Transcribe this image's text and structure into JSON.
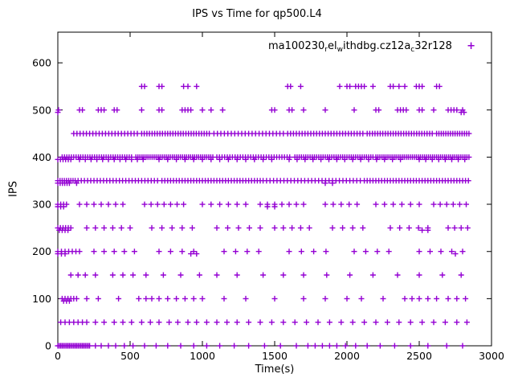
{
  "title": "IPS vs Time for qp500.L4",
  "xlabel": "Time(s)",
  "ylabel": "IPS",
  "legend": {
    "plain_label": "ma100230_rel_withdbg.cz12a_c32r128",
    "parts": [
      {
        "text": "ma100230",
        "sub": false
      },
      {
        "text": "r",
        "sub": true
      },
      {
        "text": "el",
        "sub": false
      },
      {
        "text": "w",
        "sub": true
      },
      {
        "text": "ithdbg.cz12a",
        "sub": false
      },
      {
        "text": "c",
        "sub": true
      },
      {
        "text": "32r128",
        "sub": false
      }
    ],
    "marker": "+"
  },
  "chart_data": {
    "type": "scatter",
    "title": "IPS vs Time for qp500.L4",
    "xlabel": "Time(s)",
    "ylabel": "IPS",
    "xlim": [
      0,
      3000
    ],
    "ylim": [
      0,
      665
    ],
    "xticks": [
      0,
      500,
      1000,
      1500,
      2000,
      2500,
      3000
    ],
    "yticks": [
      0,
      100,
      200,
      300,
      400,
      500,
      600
    ],
    "grid": false,
    "legend_position": "top-right-inside",
    "series_label": "ma100230_rel_withdbg.cz12a_c32r128",
    "marker": "+",
    "color": "#9400D3",
    "note": "x values per IPS band; runs are [start,end,step] expansions plus individual points (values estimated from plot)",
    "bands": [
      {
        "ips": 550,
        "points": [
          580,
          600,
          700,
          720,
          870,
          900,
          960,
          1590,
          1610,
          1680,
          1950,
          2000,
          2020,
          2060,
          2080,
          2100,
          2120,
          2180,
          2300,
          2320,
          2360,
          2400,
          2480,
          2500,
          2520,
          2620,
          2640
        ]
      },
      {
        "ips": 500,
        "points": [
          5,
          150,
          170,
          280,
          300,
          320,
          390,
          410,
          580,
          700,
          720,
          860,
          880,
          900,
          920,
          1000,
          1060,
          1140,
          1480,
          1500,
          1600,
          1620,
          1700,
          1850,
          2050,
          2200,
          2220,
          2350,
          2370,
          2390,
          2410,
          2500,
          2520,
          2600,
          2700,
          2720,
          2740,
          2760,
          2800
        ]
      },
      {
        "ips": 495,
        "points": [
          0,
          2790,
          2810
        ]
      },
      {
        "ips": 450,
        "runs": [
          [
            110,
            560,
            22
          ],
          [
            580,
            1060,
            18
          ],
          [
            1080,
            1570,
            24
          ],
          [
            1590,
            2120,
            20
          ],
          [
            2140,
            2600,
            18
          ],
          [
            2620,
            2850,
            16
          ]
        ],
        "points": []
      },
      {
        "ips": 400,
        "runs": [
          [
            30,
            520,
            16
          ],
          [
            540,
            1080,
            14
          ],
          [
            1100,
            1620,
            18
          ],
          [
            1640,
            2180,
            15
          ],
          [
            2200,
            2850,
            14
          ]
        ],
        "points": []
      },
      {
        "ips": 395,
        "runs": [
          [
            0,
            90,
            18
          ],
          [
            150,
            600,
            40
          ],
          [
            700,
            1500,
            60
          ],
          [
            1600,
            2400,
            55
          ],
          [
            2500,
            2840,
            45
          ]
        ],
        "points": []
      },
      {
        "ips": 350,
        "runs": [
          [
            0,
            120,
            15
          ],
          [
            140,
            700,
            22
          ],
          [
            720,
            1400,
            20
          ],
          [
            1420,
            2100,
            24
          ],
          [
            2120,
            2850,
            20
          ]
        ],
        "points": []
      },
      {
        "ips": 345,
        "runs": [
          [
            0,
            80,
            16
          ]
        ],
        "points": [
          130,
          1850,
          1900
        ]
      },
      {
        "ips": 300,
        "runs": [
          [
            0,
            60,
            20
          ],
          [
            150,
            450,
            50
          ],
          [
            600,
            900,
            45
          ],
          [
            1000,
            1300,
            60
          ],
          [
            1400,
            1700,
            50
          ],
          [
            1850,
            2100,
            55
          ],
          [
            2200,
            2500,
            60
          ],
          [
            2600,
            2840,
            45
          ]
        ],
        "points": []
      },
      {
        "ips": 295,
        "points": [
          0,
          20,
          40,
          1450,
          1500
        ]
      },
      {
        "ips": 250,
        "runs": [
          [
            0,
            100,
            18
          ],
          [
            200,
            500,
            60
          ],
          [
            650,
            950,
            70
          ],
          [
            1100,
            1400,
            75
          ],
          [
            1500,
            1750,
            60
          ],
          [
            1900,
            2150,
            70
          ],
          [
            2300,
            2600,
            65
          ],
          [
            2700,
            2840,
            45
          ]
        ],
        "points": []
      },
      {
        "ips": 245,
        "points": [
          10,
          30,
          50,
          70,
          2520,
          2560
        ]
      },
      {
        "ips": 200,
        "runs": [
          [
            0,
            150,
            25
          ],
          [
            250,
            550,
            70
          ],
          [
            700,
            1000,
            80
          ],
          [
            1150,
            1450,
            80
          ],
          [
            1600,
            1900,
            85
          ],
          [
            2050,
            2350,
            80
          ],
          [
            2500,
            2800,
            75
          ]
        ],
        "points": []
      },
      {
        "ips": 195,
        "points": [
          0,
          25,
          50,
          920,
          960,
          2750
        ]
      },
      {
        "ips": 150,
        "points": [
          90,
          140,
          190,
          260,
          380,
          450,
          520,
          610,
          730,
          850,
          980,
          1100,
          1240,
          1420,
          1560,
          1700,
          1860,
          2020,
          2180,
          2350,
          2500,
          2660,
          2790
        ]
      },
      {
        "ips": 100,
        "runs": [
          [
            30,
            130,
            20
          ]
        ],
        "points": [
          200,
          280,
          420,
          560,
          610,
          650,
          700,
          760,
          820,
          880,
          940,
          1000,
          1150,
          1300,
          1500,
          1700,
          1850,
          2000,
          2100,
          2250,
          2400,
          2450,
          2500,
          2560,
          2620,
          2700,
          2760,
          2820
        ]
      },
      {
        "ips": 95,
        "points": [
          40,
          60,
          80
        ]
      },
      {
        "ips": 50,
        "runs": [
          [
            20,
            200,
            30
          ]
        ],
        "points": [
          260,
          320,
          390,
          450,
          510,
          580,
          640,
          700,
          770,
          830,
          900,
          960,
          1030,
          1100,
          1170,
          1240,
          1320,
          1400,
          1480,
          1560,
          1640,
          1720,
          1800,
          1880,
          1960,
          2040,
          2120,
          2200,
          2280,
          2360,
          2440,
          2520,
          2600,
          2680,
          2760,
          2830
        ]
      },
      {
        "ips": 0,
        "runs": [
          [
            0,
            220,
            10
          ]
        ],
        "points": [
          260,
          300,
          350,
          400,
          460,
          520,
          600,
          680,
          760,
          850,
          940,
          1030,
          1120,
          1220,
          1320,
          1430,
          1540,
          1650,
          1730,
          1780,
          1830,
          1880,
          1930,
          1990,
          2060,
          2140,
          2230,
          2330,
          2440,
          2560,
          2690,
          2800
        ]
      }
    ]
  }
}
